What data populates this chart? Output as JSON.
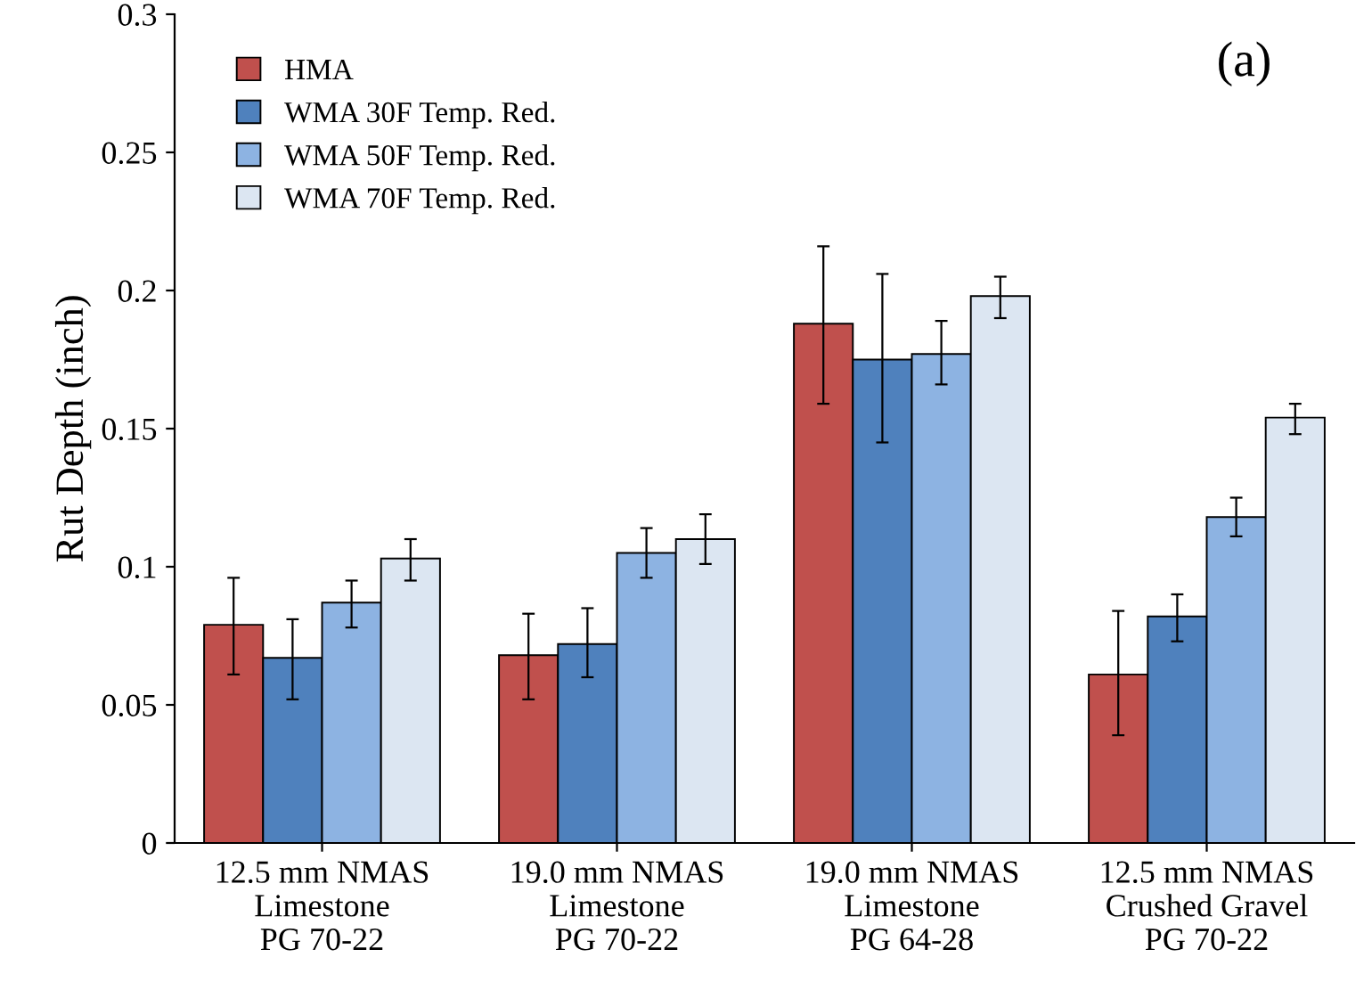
{
  "chart_data": {
    "type": "bar",
    "ylabel": "Rut Depth (inch)",
    "categories": [
      "12.5 mm NMAS\nLimestone\nPG 70-22",
      "19.0 mm NMAS\nLimestone\nPG 70-22",
      "19.0 mm NMAS\nLimestone\nPG 64-28",
      "12.5 mm NMAS\nCrushed Gravel\nPG 70-22"
    ],
    "series": [
      {
        "name": "HMA",
        "color": "#c0504d",
        "values": [
          0.079,
          0.068,
          0.188,
          0.061
        ],
        "errors": [
          [
            0.061,
            0.096
          ],
          [
            0.052,
            0.083
          ],
          [
            0.159,
            0.216
          ],
          [
            0.039,
            0.084
          ]
        ]
      },
      {
        "name": "WMA 30F Temp. Red.",
        "color": "#4f81bd",
        "values": [
          0.067,
          0.072,
          0.175,
          0.082
        ],
        "errors": [
          [
            0.052,
            0.081
          ],
          [
            0.06,
            0.085
          ],
          [
            0.145,
            0.206
          ],
          [
            0.073,
            0.09
          ]
        ]
      },
      {
        "name": "WMA 50F Temp. Red.",
        "color": "#8db3e2",
        "values": [
          0.087,
          0.105,
          0.177,
          0.118
        ],
        "errors": [
          [
            0.078,
            0.095
          ],
          [
            0.096,
            0.114
          ],
          [
            0.166,
            0.189
          ],
          [
            0.111,
            0.125
          ]
        ]
      },
      {
        "name": "WMA 70F Temp. Red.",
        "color": "#dce6f2",
        "values": [
          0.103,
          0.11,
          0.198,
          0.154
        ],
        "errors": [
          [
            0.095,
            0.11
          ],
          [
            0.101,
            0.119
          ],
          [
            0.19,
            0.205
          ],
          [
            0.148,
            0.159
          ]
        ]
      }
    ],
    "ylim": [
      0,
      0.3
    ],
    "yticks": [
      0,
      0.05,
      0.1,
      0.15,
      0.2,
      0.25,
      0.3
    ],
    "annotations": [
      "(a)"
    ],
    "legend": "top left",
    "grid": false
  }
}
